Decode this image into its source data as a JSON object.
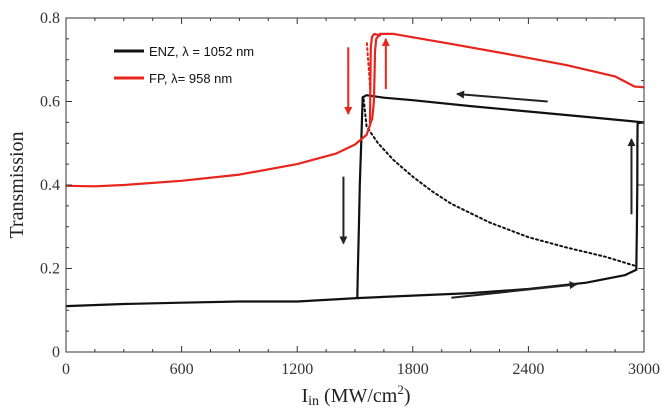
{
  "chart_data": {
    "type": "line",
    "title": "",
    "xlabel_main": "I",
    "xlabel_sub": "in",
    "xlabel_unit_pre": " (MW/cm",
    "xlabel_unit_sup": "2",
    "xlabel_unit_post": ")",
    "ylabel": "Transmission",
    "xlim": [
      0,
      3000
    ],
    "ylim": [
      0,
      0.8
    ],
    "xticks": [
      {
        "value": 0,
        "label": "0"
      },
      {
        "value": 600,
        "label": "600"
      },
      {
        "value": 1200,
        "label": "1200"
      },
      {
        "value": 1800,
        "label": "1800"
      },
      {
        "value": 2400,
        "label": "2400"
      },
      {
        "value": 3000,
        "label": "3000"
      }
    ],
    "yticks": [
      {
        "value": 0,
        "label": "0"
      },
      {
        "value": 0.2,
        "label": "0.2"
      },
      {
        "value": 0.4,
        "label": "0.4"
      },
      {
        "value": 0.6,
        "label": "0.6"
      },
      {
        "value": 0.8,
        "label": "0.8"
      }
    ],
    "grid": false,
    "legend_position": "top-left",
    "series": [
      {
        "name": "ENZ, λ = 1052 nm",
        "color": "#111111",
        "segments": [
          {
            "style": "solid",
            "points": [
              [
                0,
                0.11
              ],
              [
                300,
                0.115
              ],
              [
                600,
                0.118
              ],
              [
                900,
                0.121
              ],
              [
                1200,
                0.121
              ],
              [
                1510,
                0.129
              ],
              [
                1800,
                0.135
              ],
              [
                2100,
                0.141
              ],
              [
                2400,
                0.151
              ],
              [
                2700,
                0.166
              ],
              [
                2900,
                0.184
              ],
              [
                2960,
                0.197
              ]
            ]
          },
          {
            "style": "solid",
            "points": [
              [
                2960,
                0.197
              ],
              [
                2963,
                0.3
              ],
              [
                2965,
                0.4
              ],
              [
                2966,
                0.5
              ],
              [
                2967,
                0.548
              ]
            ]
          },
          {
            "style": "solid",
            "points": [
              [
                2967,
                0.548
              ],
              [
                3000,
                0.55
              ]
            ]
          },
          {
            "style": "solid",
            "points": [
              [
                3000,
                0.55
              ],
              [
                2700,
                0.563
              ],
              [
                2400,
                0.576
              ],
              [
                2100,
                0.589
              ],
              [
                1800,
                0.603
              ],
              [
                1650,
                0.609
              ],
              [
                1560,
                0.615
              ],
              [
                1540,
                0.61
              ]
            ]
          },
          {
            "style": "solid",
            "points": [
              [
                1540,
                0.61
              ],
              [
                1532,
                0.5
              ],
              [
                1525,
                0.4
              ],
              [
                1520,
                0.3
              ],
              [
                1515,
                0.2
              ],
              [
                1512,
                0.129
              ]
            ]
          },
          {
            "style": "dotted",
            "points": [
              [
                1545,
                0.605
              ],
              [
                1560,
                0.54
              ],
              [
                1620,
                0.5
              ],
              [
                1700,
                0.46
              ],
              [
                1800,
                0.42
              ],
              [
                1900,
                0.385
              ],
              [
                2000,
                0.355
              ],
              [
                2200,
                0.31
              ],
              [
                2400,
                0.275
              ],
              [
                2600,
                0.25
              ],
              [
                2800,
                0.228
              ],
              [
                2950,
                0.207
              ]
            ]
          }
        ]
      },
      {
        "name": "FP, λ= 958 nm",
        "color": "#e8241c",
        "segments": [
          {
            "style": "solid",
            "points": [
              [
                0,
                0.398
              ],
              [
                150,
                0.397
              ],
              [
                300,
                0.4
              ],
              [
                600,
                0.41
              ],
              [
                900,
                0.425
              ],
              [
                1200,
                0.45
              ],
              [
                1400,
                0.475
              ],
              [
                1500,
                0.497
              ],
              [
                1560,
                0.52
              ],
              [
                1590,
                0.56
              ],
              [
                1598,
                0.6
              ],
              [
                1601,
                0.66
              ],
              [
                1604,
                0.72
              ],
              [
                1610,
                0.75
              ],
              [
                1630,
                0.762
              ],
              [
                1700,
                0.762
              ],
              [
                2000,
                0.738
              ],
              [
                2300,
                0.713
              ],
              [
                2600,
                0.687
              ],
              [
                2850,
                0.66
              ],
              [
                2950,
                0.636
              ],
              [
                3000,
                0.634
              ]
            ]
          },
          {
            "style": "solid",
            "points": [
              [
                1630,
                0.758
              ],
              [
                1600,
                0.762
              ],
              [
                1588,
                0.755
              ],
              [
                1582,
                0.73
              ],
              [
                1580,
                0.65
              ],
              [
                1579,
                0.6
              ],
              [
                1578,
                0.55
              ]
            ]
          },
          {
            "style": "dotted",
            "points": [
              [
                1562,
                0.74
              ],
              [
                1568,
                0.7
              ],
              [
                1575,
                0.66
              ],
              [
                1578,
                0.63
              ]
            ]
          }
        ]
      }
    ],
    "arrows": [
      {
        "series": "ENZ, λ = 1052 nm",
        "from": [
          2500,
          0.6
        ],
        "to": [
          2030,
          0.618
        ]
      },
      {
        "series": "ENZ, λ = 1052 nm",
        "from": [
          1440,
          0.42
        ],
        "to": [
          1440,
          0.26
        ]
      },
      {
        "series": "ENZ, λ = 1052 nm",
        "from": [
          2000,
          0.13
        ],
        "to": [
          2650,
          0.162
        ]
      },
      {
        "series": "ENZ, λ = 1052 nm",
        "from": [
          2935,
          0.33
        ],
        "to": [
          2935,
          0.51
        ]
      },
      {
        "series": "FP, λ= 958 nm",
        "from": [
          1465,
          0.73
        ],
        "to": [
          1465,
          0.57
        ]
      },
      {
        "series": "FP, λ= 958 nm",
        "from": [
          1660,
          0.63
        ],
        "to": [
          1660,
          0.75
        ]
      }
    ]
  }
}
